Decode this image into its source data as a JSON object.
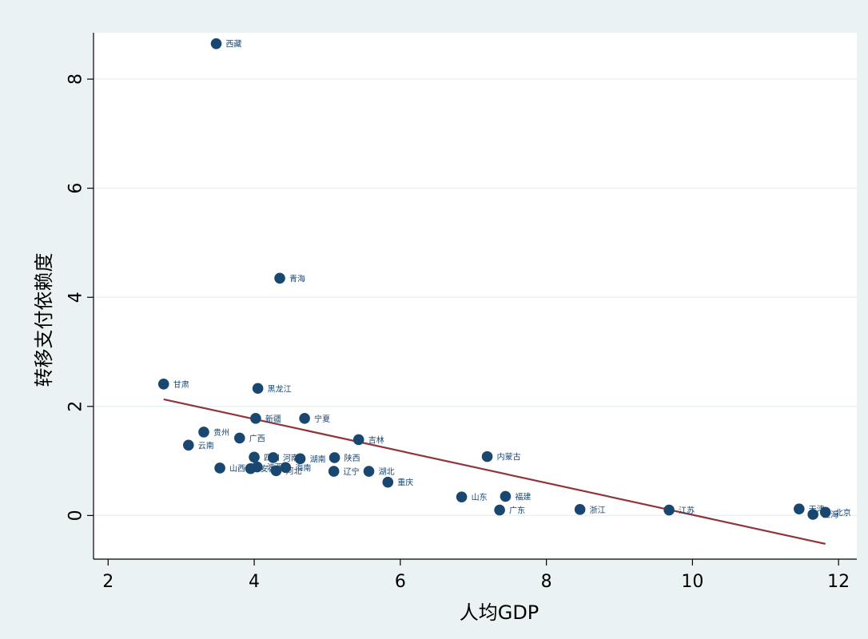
{
  "colors": {
    "background": "#eaf2f3",
    "plot_area": "#ffffff",
    "gridline": "#eaf2f3",
    "marker": "#1a476f",
    "fit_line": "#90353b",
    "axis": "#000000"
  },
  "chart_data": {
    "type": "scatter",
    "title": "",
    "xlabel": "人均GDP",
    "ylabel": "转移支付依赖度",
    "xlim": [
      1.8,
      12.25
    ],
    "ylim": [
      -0.8,
      8.85
    ],
    "xticks": [
      2,
      4,
      6,
      8,
      10,
      12
    ],
    "yticks": [
      0,
      2,
      4,
      6,
      8
    ],
    "grid": "horizontal",
    "legend": "none",
    "points": [
      {
        "label": "西藏",
        "x": 3.48,
        "y": 8.65
      },
      {
        "label": "青海",
        "x": 4.35,
        "y": 4.35
      },
      {
        "label": "甘肃",
        "x": 2.76,
        "y": 2.41
      },
      {
        "label": "黑龙江",
        "x": 4.05,
        "y": 2.33
      },
      {
        "label": "新疆",
        "x": 4.02,
        "y": 1.78
      },
      {
        "label": "宁夏",
        "x": 4.69,
        "y": 1.78
      },
      {
        "label": "贵州",
        "x": 3.31,
        "y": 1.53
      },
      {
        "label": "广西",
        "x": 3.8,
        "y": 1.42
      },
      {
        "label": "云南",
        "x": 3.1,
        "y": 1.29
      },
      {
        "label": "吉林",
        "x": 5.43,
        "y": 1.39
      },
      {
        "label": "内蒙古",
        "x": 7.19,
        "y": 1.08
      },
      {
        "label": "四川",
        "x": 4.0,
        "y": 1.07
      },
      {
        "label": "河南",
        "x": 4.26,
        "y": 1.06
      },
      {
        "label": "湖南",
        "x": 4.63,
        "y": 1.04
      },
      {
        "label": "陕西",
        "x": 5.1,
        "y": 1.06
      },
      {
        "label": "山西",
        "x": 3.53,
        "y": 0.87
      },
      {
        "label": "安徽",
        "x": 3.95,
        "y": 0.86
      },
      {
        "label": "江西",
        "x": 4.04,
        "y": 0.89
      },
      {
        "label": "河北",
        "x": 4.3,
        "y": 0.82
      },
      {
        "label": "海南",
        "x": 4.43,
        "y": 0.88
      },
      {
        "label": "辽宁",
        "x": 5.09,
        "y": 0.81
      },
      {
        "label": "湖北",
        "x": 5.57,
        "y": 0.81
      },
      {
        "label": "重庆",
        "x": 5.83,
        "y": 0.61
      },
      {
        "label": "山东",
        "x": 6.84,
        "y": 0.34
      },
      {
        "label": "福建",
        "x": 7.44,
        "y": 0.35
      },
      {
        "label": "广东",
        "x": 7.36,
        "y": 0.1
      },
      {
        "label": "浙江",
        "x": 8.46,
        "y": 0.11
      },
      {
        "label": "江苏",
        "x": 9.68,
        "y": 0.1
      },
      {
        "label": "天津",
        "x": 11.46,
        "y": 0.12
      },
      {
        "label": "上海",
        "x": 11.65,
        "y": 0.02
      },
      {
        "label": "北京",
        "x": 11.82,
        "y": 0.06
      }
    ],
    "fit_line": {
      "x": [
        2.76,
        11.82
      ],
      "y": [
        2.13,
        -0.52
      ]
    }
  }
}
